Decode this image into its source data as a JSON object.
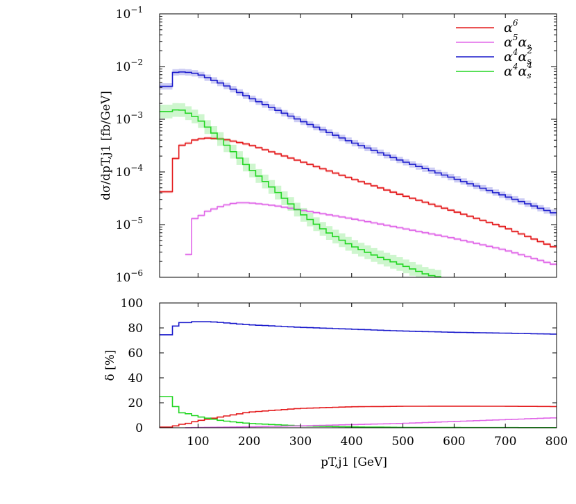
{
  "colors": {
    "alpha6": "#e41a1c",
    "alpha5s": "#e066e8",
    "alpha4s2": "#1a1acc",
    "alpha4s4": "#22d622"
  },
  "chart_data": [
    {
      "type": "line",
      "panel": "top",
      "yscale": "log",
      "xlim": [
        25,
        800
      ],
      "ylim": [
        1e-06,
        0.1
      ],
      "ylabel": "dσ/dpT,j1 [fb/GeV]",
      "ytick_labels": [
        {
          "base": "10",
          "exp": "−1"
        },
        {
          "base": "10",
          "exp": "−2"
        },
        {
          "base": "10",
          "exp": "−3"
        },
        {
          "base": "10",
          "exp": "−4"
        },
        {
          "base": "10",
          "exp": "−5"
        },
        {
          "base": "10",
          "exp": "−6"
        }
      ],
      "legend_position": "top-right",
      "legend": [
        {
          "base": "α",
          "sup": "6"
        },
        {
          "base": "α",
          "sup": "5",
          "tail": "α",
          "tailsub": "s"
        },
        {
          "base": "α",
          "sup": "4",
          "tail": "α",
          "tailsub": "s",
          "tailsup": "2"
        },
        {
          "base": "α",
          "sup": "4",
          "tail": "α",
          "tailsub": "s",
          "tailsup": "4"
        }
      ],
      "series": [
        {
          "key": "alpha6",
          "bands": true,
          "start": 25,
          "end": 800,
          "anchors": [
            [
              25,
              4.2e-05
            ],
            [
              50,
              4.2e-05
            ],
            [
              50,
              0.00018
            ],
            [
              62,
              0.00018
            ],
            [
              62,
              0.00032
            ],
            [
              75,
              0.00032
            ],
            [
              88,
              0.00039
            ],
            [
              100,
              0.00042
            ],
            [
              120,
              0.00044
            ],
            [
              150,
              0.00042
            ],
            [
              200,
              0.00033
            ],
            [
              250,
              0.00023
            ],
            [
              300,
              0.00016
            ],
            [
              400,
              7.5e-05
            ],
            [
              500,
              3.6e-05
            ],
            [
              600,
              1.8e-05
            ],
            [
              700,
              8.8e-06
            ],
            [
              800,
              3.6e-06
            ]
          ]
        },
        {
          "key": "alpha5s",
          "bands": true,
          "start": 75,
          "end": 800,
          "anchors": [
            [
              75,
              2.7e-06
            ],
            [
              88,
              2.7e-06
            ],
            [
              88,
              1.3e-05
            ],
            [
              100,
              1.3e-05
            ],
            [
              112,
              1.7e-05
            ],
            [
              150,
              2.3e-05
            ],
            [
              175,
              2.6e-05
            ],
            [
              200,
              2.6e-05
            ],
            [
              250,
              2.3e-05
            ],
            [
              300,
              1.9e-05
            ],
            [
              400,
              1.3e-05
            ],
            [
              500,
              8.5e-06
            ],
            [
              600,
              5.5e-06
            ],
            [
              700,
              3.3e-06
            ],
            [
              800,
              1.7e-06
            ]
          ]
        },
        {
          "key": "alpha4s2",
          "bands": true,
          "start": 25,
          "end": 800,
          "anchors": [
            [
              25,
              0.0042
            ],
            [
              50,
              0.0042
            ],
            [
              50,
              0.0076
            ],
            [
              62,
              0.0079
            ],
            [
              75,
              0.0079
            ],
            [
              100,
              0.0073
            ],
            [
              150,
              0.0046
            ],
            [
              200,
              0.0026
            ],
            [
              300,
              0.00095
            ],
            [
              400,
              0.00037
            ],
            [
              500,
              0.00016
            ],
            [
              600,
              7.6e-05
            ],
            [
              700,
              3.5e-05
            ],
            [
              800,
              1.6e-05
            ]
          ]
        },
        {
          "key": "alpha4s4",
          "bands": true,
          "start": 25,
          "end": 575,
          "anchors": [
            [
              25,
              0.0014
            ],
            [
              50,
              0.0014
            ],
            [
              62,
              0.0016
            ],
            [
              75,
              0.0014
            ],
            [
              100,
              0.00105
            ],
            [
              150,
              0.00037
            ],
            [
              200,
              0.00012
            ],
            [
              250,
              4.6e-05
            ],
            [
              300,
              1.7e-05
            ],
            [
              350,
              7.5e-06
            ],
            [
              400,
              4e-06
            ],
            [
              450,
              2.5e-06
            ],
            [
              500,
              1.7e-06
            ],
            [
              550,
              1.1e-06
            ],
            [
              575,
              1e-06
            ]
          ]
        }
      ]
    },
    {
      "type": "line",
      "panel": "bottom",
      "yscale": "linear",
      "xlim": [
        25,
        800
      ],
      "ylim": [
        0,
        100
      ],
      "yticks": [
        0,
        20,
        40,
        60,
        80,
        100
      ],
      "xticks": [
        100,
        200,
        300,
        400,
        500,
        600,
        700,
        800
      ],
      "ylabel": "δ [%]",
      "xlabel": "pT,j1 [GeV]",
      "series": [
        {
          "key": "alpha4s2",
          "start": 25,
          "end": 800,
          "anchors": [
            [
              25,
              74.5
            ],
            [
              50,
              74.5
            ],
            [
              50,
              81.5
            ],
            [
              62,
              81.5
            ],
            [
              62,
              84.3
            ],
            [
              87,
              84.3
            ],
            [
              87,
              85.0
            ],
            [
              125,
              85.0
            ],
            [
              150,
              84.2
            ],
            [
              200,
              82.5
            ],
            [
              300,
              80.5
            ],
            [
              400,
              79.0
            ],
            [
              500,
              77.5
            ],
            [
              600,
              76.5
            ],
            [
              700,
              75.8
            ],
            [
              800,
              75.0
            ]
          ]
        },
        {
          "key": "alpha6",
          "start": 25,
          "end": 800,
          "anchors": [
            [
              25,
              0.5
            ],
            [
              50,
              0.5
            ],
            [
              50,
              1.5
            ],
            [
              62,
              1.5
            ],
            [
              62,
              2.8
            ],
            [
              75,
              2.8
            ],
            [
              100,
              5.5
            ],
            [
              150,
              9.0
            ],
            [
              200,
              12.5
            ],
            [
              300,
              15.5
            ],
            [
              400,
              16.8
            ],
            [
              500,
              17.2
            ],
            [
              600,
              17.3
            ],
            [
              700,
              17.2
            ],
            [
              800,
              17.0
            ]
          ]
        },
        {
          "key": "alpha4s4",
          "start": 25,
          "end": 800,
          "anchors": [
            [
              25,
              25.0
            ],
            [
              50,
              25.0
            ],
            [
              50,
              17.0
            ],
            [
              62,
              17.0
            ],
            [
              62,
              12.0
            ],
            [
              75,
              12.0
            ],
            [
              100,
              9.0
            ],
            [
              150,
              5.5
            ],
            [
              200,
              3.5
            ],
            [
              300,
              1.5
            ],
            [
              400,
              0.7
            ],
            [
              500,
              0.3
            ],
            [
              600,
              0.2
            ],
            [
              800,
              0.1
            ]
          ]
        },
        {
          "key": "alpha5s",
          "start": 75,
          "end": 800,
          "anchors": [
            [
              75,
              0.0
            ],
            [
              100,
              0.2
            ],
            [
              200,
              0.8
            ],
            [
              300,
              1.5
            ],
            [
              400,
              2.5
            ],
            [
              500,
              3.5
            ],
            [
              600,
              5.0
            ],
            [
              700,
              6.5
            ],
            [
              800,
              8.0
            ]
          ]
        }
      ]
    }
  ]
}
